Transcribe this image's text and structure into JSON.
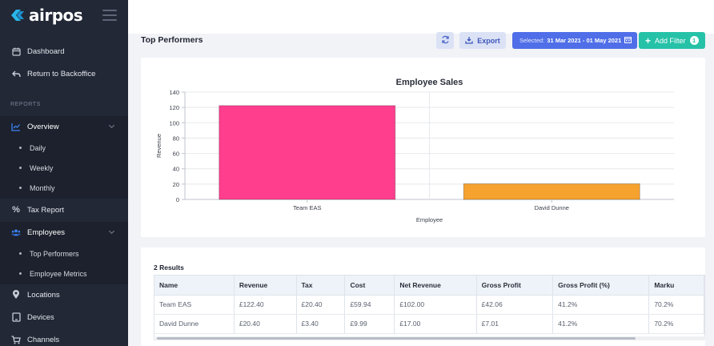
{
  "app": {
    "name": "airpos"
  },
  "sidebar": {
    "items": [
      {
        "label": "Dashboard",
        "icon": "calendar-icon"
      },
      {
        "label": "Return to Backoffice",
        "icon": "reply-arrow-icon"
      }
    ],
    "section_label": "REPORTS",
    "overview": {
      "label": "Overview",
      "icon": "chart-line-icon",
      "children": [
        "Daily",
        "Weekly",
        "Monthly"
      ]
    },
    "tax_report": {
      "label": "Tax Report",
      "icon": "percent-icon"
    },
    "employees": {
      "label": "Employees",
      "icon": "users-icon",
      "children": [
        "Top Performers",
        "Employee Metrics"
      ]
    },
    "locations": {
      "label": "Locations",
      "icon": "map-pin-icon"
    },
    "devices": {
      "label": "Devices",
      "icon": "tablet-icon"
    },
    "channels": {
      "label": "Channels",
      "icon": "cart-icon"
    },
    "active_color": "#3b82f6"
  },
  "header": {
    "title": "Top Performers",
    "export_label": "Export",
    "date_prefix": "Selected:",
    "date_range": "31 Mar 2021 - 01 May 2021",
    "add_filter_label": "Add Filter",
    "filter_count": "1"
  },
  "chart_data": {
    "type": "bar",
    "title": "Employee Sales",
    "xlabel": "Employee",
    "ylabel": "Revenue",
    "categories": [
      "Team  EAS",
      "David Dunne"
    ],
    "values": [
      122.4,
      20.4
    ],
    "colors": [
      "#ff3e8e",
      "#f6a22f"
    ],
    "ylim": [
      0,
      140
    ],
    "yticks": [
      "0",
      "20",
      "40",
      "60",
      "80",
      "100",
      "120",
      "140"
    ],
    "grid": true
  },
  "table": {
    "results_label": "2 Results",
    "columns": [
      "Name",
      "Revenue",
      "Tax",
      "Cost",
      "Net Revenue",
      "Gross Profit",
      "Gross Profit (%)",
      "Marku"
    ],
    "rows": [
      [
        "Team EAS",
        "£122.40",
        "£20.40",
        "£59.94",
        "£102.00",
        "£42.06",
        "41.2%",
        "70.2%"
      ],
      [
        "David Dunne",
        "£20.40",
        "£3.40",
        "£9.99",
        "£17.00",
        "£7.01",
        "41.2%",
        "70.2%"
      ]
    ]
  }
}
